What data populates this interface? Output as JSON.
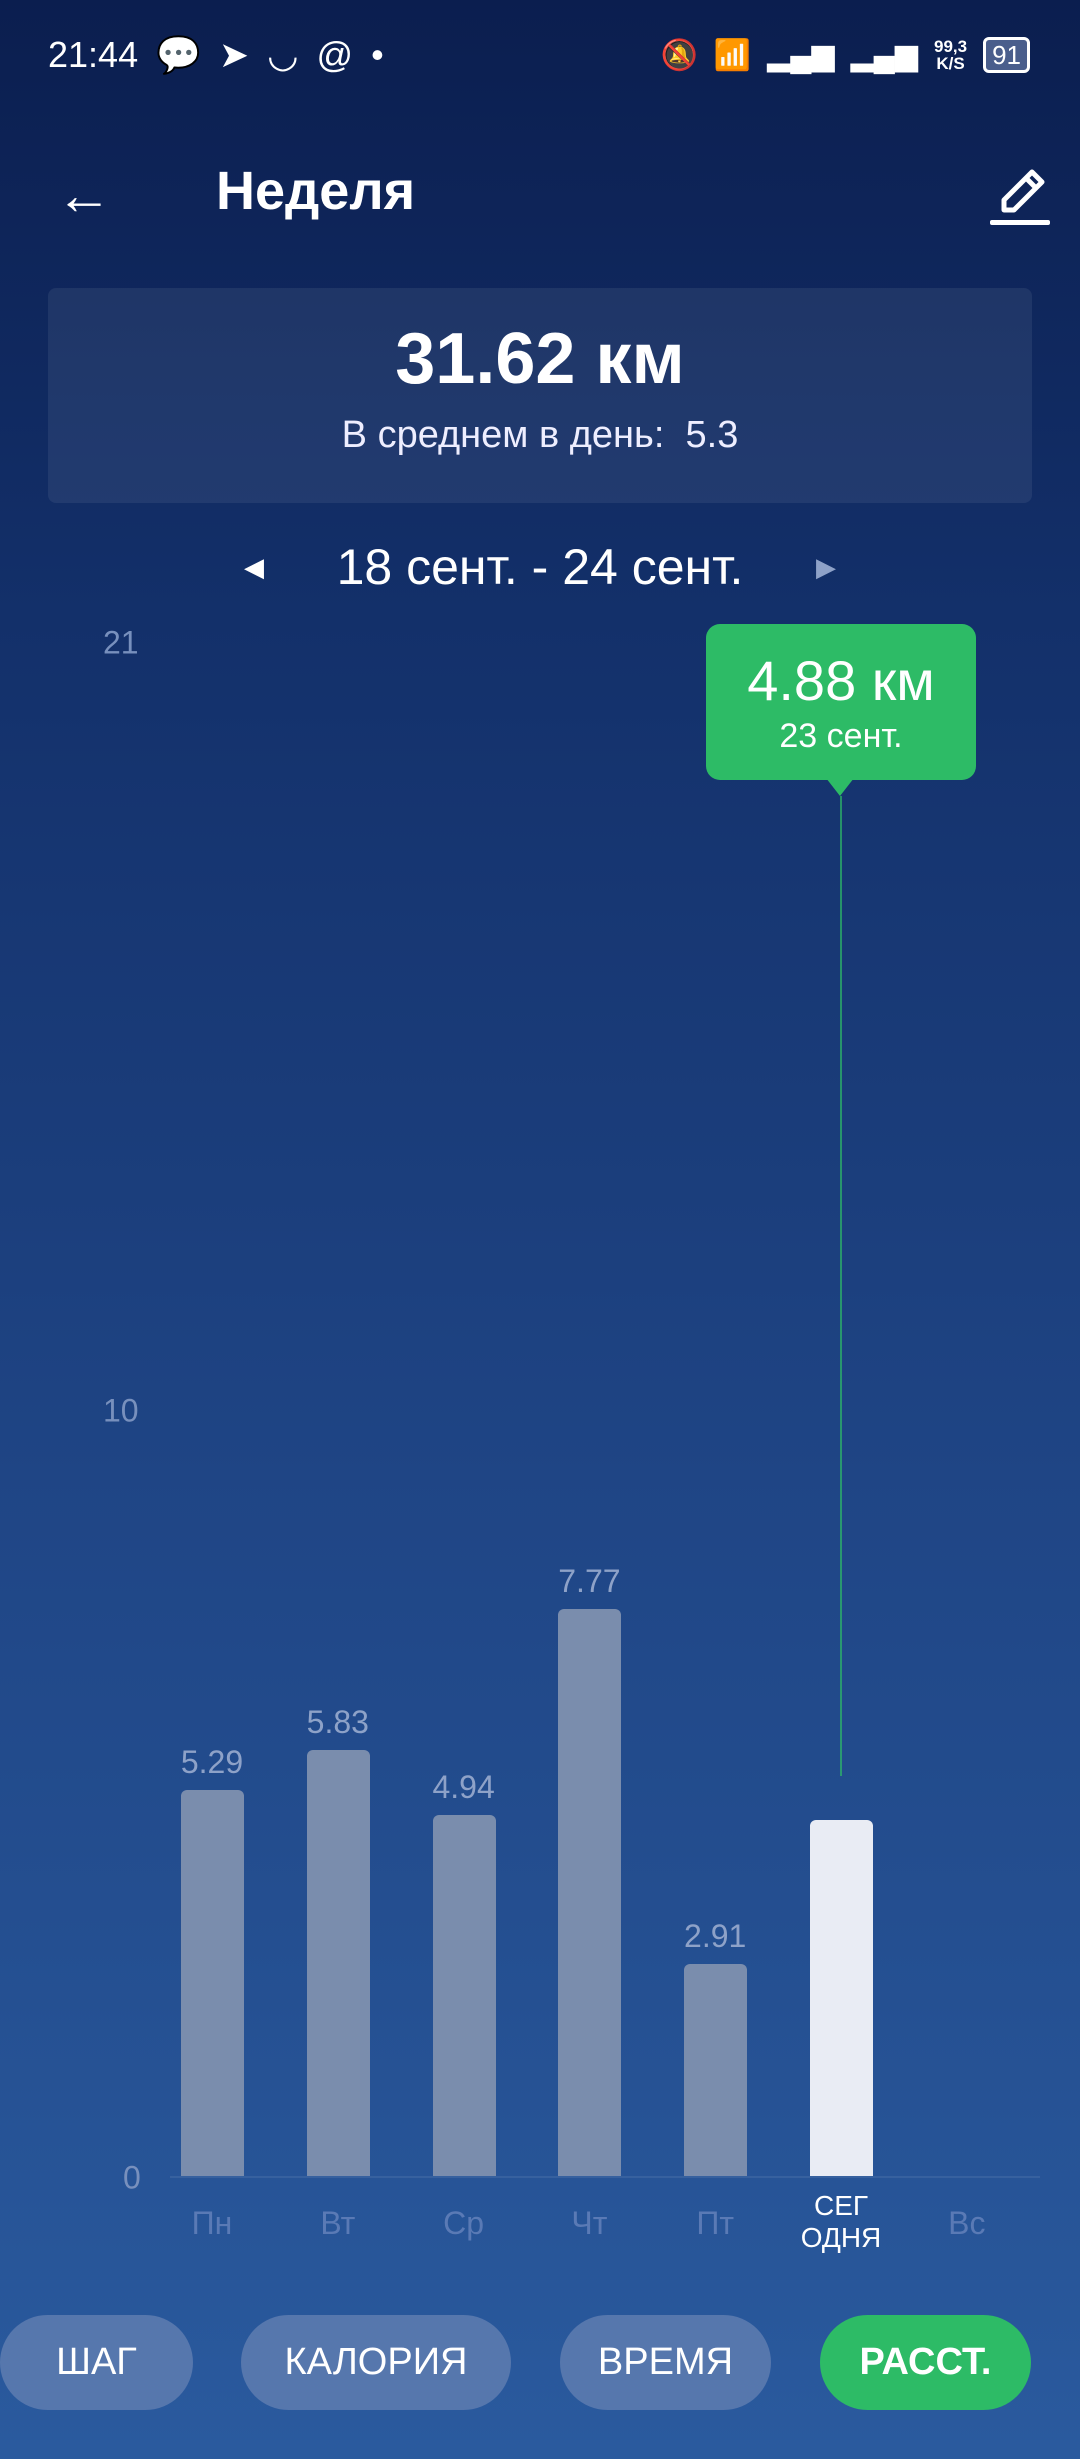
{
  "status_bar": {
    "time": "21:44",
    "net_speed_value": "99,3",
    "net_speed_unit": "K/S",
    "battery": "91",
    "icons": [
      "chat-icon",
      "telegram-icon",
      "smile-icon",
      "at-icon",
      "dot-icon",
      "bell-off-icon",
      "wifi-icon",
      "signal-icon",
      "signal-icon"
    ]
  },
  "header": {
    "title": "Неделя",
    "back_icon": "arrow-left-icon",
    "edit_icon": "pencil-icon"
  },
  "summary": {
    "total": "31.62 км",
    "avg_label": "В среднем в день:",
    "avg_value": "5.3"
  },
  "date_range": {
    "label": "18 сент. - 24 сент."
  },
  "tooltip": {
    "value": "4.88 км",
    "date": "23 сент.",
    "color": "#2dbb66"
  },
  "chart_data": {
    "type": "bar",
    "categories": [
      "Пн",
      "Вт",
      "Ср",
      "Чт",
      "Пт",
      "СЕГ ОДНЯ",
      "Вс"
    ],
    "values": [
      5.29,
      5.83,
      4.94,
      7.77,
      2.91,
      4.88,
      null
    ],
    "value_labels": [
      "5.29",
      "5.83",
      "4.94",
      "7.77",
      "2.91",
      "",
      ""
    ],
    "selected_index": 5,
    "y_ticks": [
      "0",
      "10",
      "21"
    ],
    "ylim": [
      0,
      21
    ]
  },
  "tabs": [
    {
      "label": "ШАГ",
      "active": false
    },
    {
      "label": "КАЛОРИЯ",
      "active": false
    },
    {
      "label": "ВРЕМЯ",
      "active": false
    },
    {
      "label": "РАССТ.",
      "active": true
    }
  ]
}
